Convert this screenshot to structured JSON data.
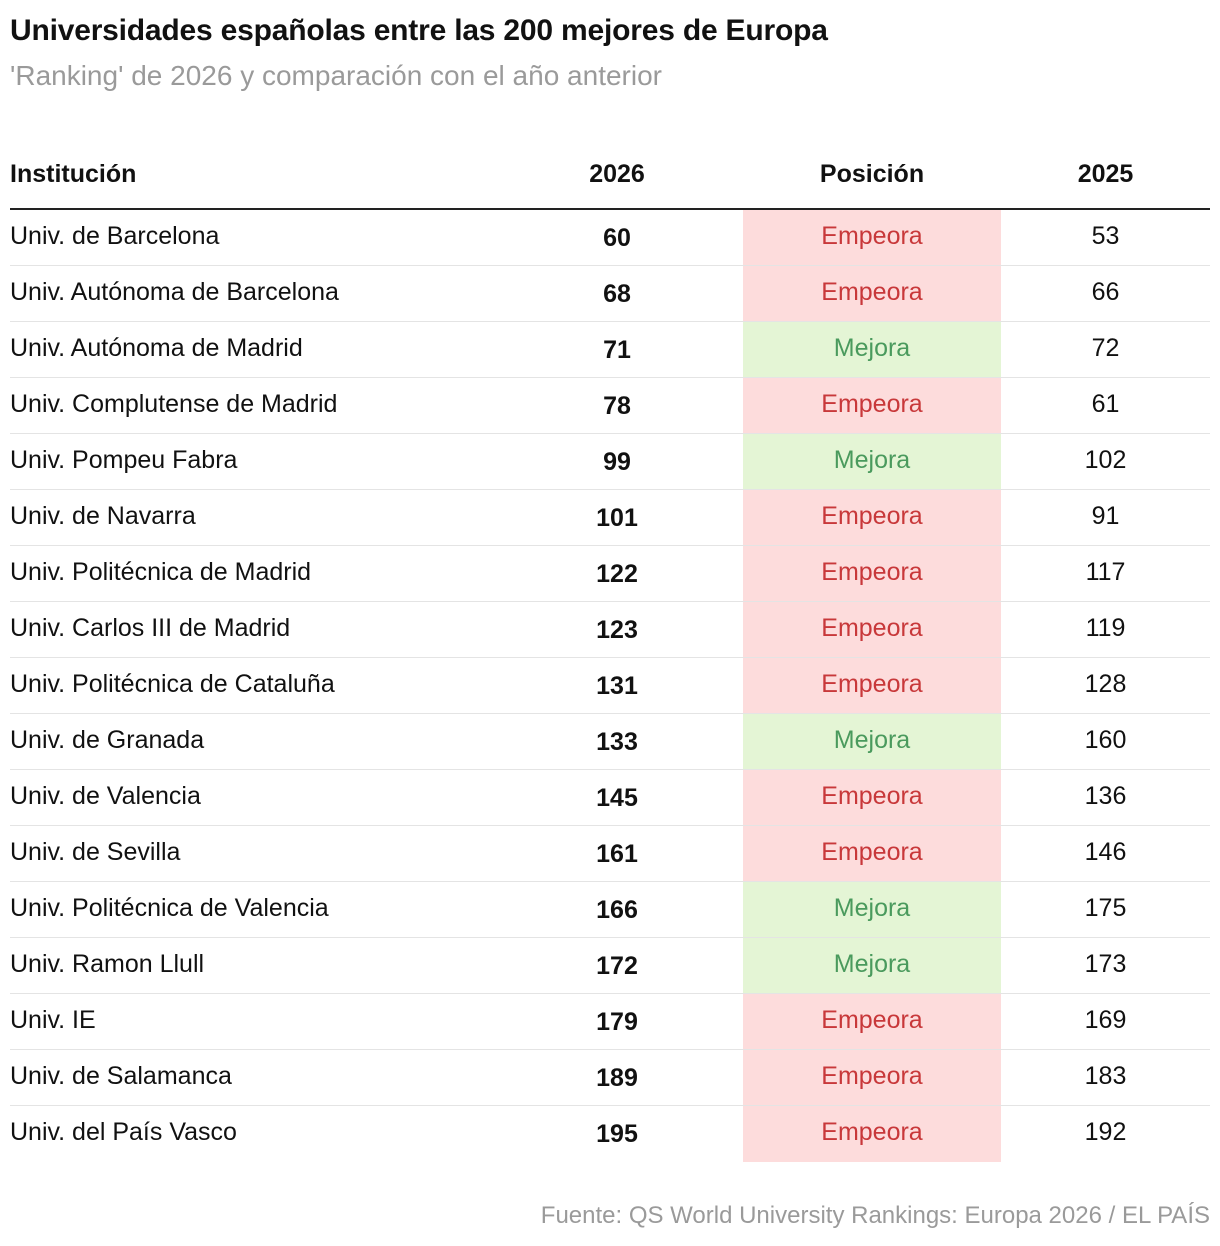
{
  "title": "Universidades españolas entre las 200 mejores de Europa",
  "subtitle": "'Ranking' de 2026 y comparación con el año anterior",
  "source": "Fuente: QS World University Rankings: Europa 2026 / EL PAÍS",
  "colors": {
    "empeora_bg": "#fddcdc",
    "empeora_text": "#c8383a",
    "mejora_bg": "#e4f5d5",
    "mejora_text": "#4a9a5d"
  },
  "chart_data": {
    "type": "table",
    "columns": [
      "Institución",
      "2026",
      "Posición",
      "2025"
    ],
    "rows": [
      {
        "institucion": "Univ. de Barcelona",
        "rank2026": "60",
        "posicion": "Empeora",
        "rank2025": "53"
      },
      {
        "institucion": "Univ. Autónoma de Barcelona",
        "rank2026": "68",
        "posicion": "Empeora",
        "rank2025": "66"
      },
      {
        "institucion": "Univ. Autónoma de Madrid",
        "rank2026": "71",
        "posicion": "Mejora",
        "rank2025": "72"
      },
      {
        "institucion": "Univ. Complutense de Madrid",
        "rank2026": "78",
        "posicion": "Empeora",
        "rank2025": "61"
      },
      {
        "institucion": "Univ. Pompeu Fabra",
        "rank2026": "99",
        "posicion": "Mejora",
        "rank2025": "102"
      },
      {
        "institucion": "Univ. de Navarra",
        "rank2026": "101",
        "posicion": "Empeora",
        "rank2025": "91"
      },
      {
        "institucion": "Univ. Politécnica de Madrid",
        "rank2026": "122",
        "posicion": "Empeora",
        "rank2025": "117"
      },
      {
        "institucion": "Univ. Carlos III de Madrid",
        "rank2026": "123",
        "posicion": "Empeora",
        "rank2025": "119"
      },
      {
        "institucion": "Univ. Politécnica de Cataluña",
        "rank2026": "131",
        "posicion": "Empeora",
        "rank2025": "128"
      },
      {
        "institucion": "Univ. de Granada",
        "rank2026": "133",
        "posicion": "Mejora",
        "rank2025": "160"
      },
      {
        "institucion": "Univ. de Valencia",
        "rank2026": "145",
        "posicion": "Empeora",
        "rank2025": "136"
      },
      {
        "institucion": "Univ. de Sevilla",
        "rank2026": "161",
        "posicion": "Empeora",
        "rank2025": "146"
      },
      {
        "institucion": "Univ. Politécnica de Valencia",
        "rank2026": "166",
        "posicion": "Mejora",
        "rank2025": "175"
      },
      {
        "institucion": "Univ. Ramon Llull",
        "rank2026": "172",
        "posicion": "Mejora",
        "rank2025": "173"
      },
      {
        "institucion": "Univ. IE",
        "rank2026": "179",
        "posicion": "Empeora",
        "rank2025": "169"
      },
      {
        "institucion": "Univ. de Salamanca",
        "rank2026": "189",
        "posicion": "Empeora",
        "rank2025": "183"
      },
      {
        "institucion": "Univ. del País Vasco",
        "rank2026": "195",
        "posicion": "Empeora",
        "rank2025": "192"
      }
    ]
  }
}
